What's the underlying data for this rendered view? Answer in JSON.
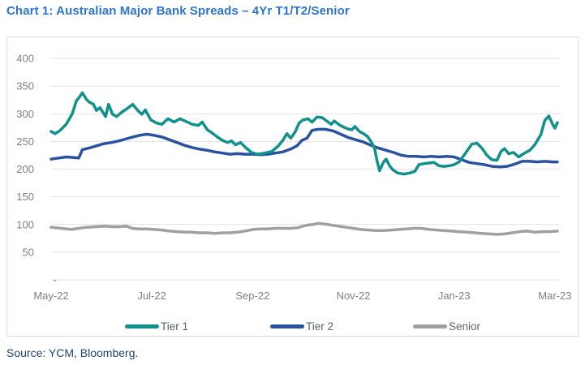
{
  "source_note": "Source: YCM, Bloomberg.",
  "colors": {
    "title_text": "#2E75C9",
    "source_text": "#24456B",
    "axis_tick": "#7F7F7F",
    "gridline": "#E2E2E2",
    "panel_border": "#D9D9D9",
    "legend_label": "#5A6470"
  },
  "chart_data": {
    "type": "line",
    "title": "Chart 1: Australian Major Bank Spreads – 4Yr T1/T2/Senior",
    "xlabel": "",
    "ylabel": "",
    "grid": "horizontal",
    "legend_position": "bottom",
    "x_unit": "months since May-2022",
    "xlim": [
      0,
      10.05
    ],
    "ylim": [
      0,
      400
    ],
    "x_ticks": [
      {
        "m": 0,
        "label": "May-22"
      },
      {
        "m": 2,
        "label": "Jul-22"
      },
      {
        "m": 4,
        "label": "Sep-22"
      },
      {
        "m": 6,
        "label": "Nov-22"
      },
      {
        "m": 8,
        "label": "Jan-23"
      },
      {
        "m": 10,
        "label": "Mar-23"
      }
    ],
    "y_ticks": [
      {
        "v": 400,
        "label": "400"
      },
      {
        "v": 350,
        "label": "350"
      },
      {
        "v": 300,
        "label": "300"
      },
      {
        "v": 250,
        "label": "250"
      },
      {
        "v": 200,
        "label": "200"
      },
      {
        "v": 150,
        "label": "150"
      },
      {
        "v": 100,
        "label": "100"
      },
      {
        "v": 50,
        "label": "50"
      },
      {
        "v": 0,
        "label": "-"
      }
    ],
    "series": [
      {
        "name": "Tier 1",
        "color": "#11918C",
        "points": [
          [
            0,
            268
          ],
          [
            0.08,
            264
          ],
          [
            0.18,
            270
          ],
          [
            0.3,
            281
          ],
          [
            0.42,
            300
          ],
          [
            0.5,
            323
          ],
          [
            0.56,
            330
          ],
          [
            0.62,
            338
          ],
          [
            0.7,
            326
          ],
          [
            0.76,
            321
          ],
          [
            0.84,
            317
          ],
          [
            0.9,
            306
          ],
          [
            0.97,
            311
          ],
          [
            1.08,
            295
          ],
          [
            1.14,
            317
          ],
          [
            1.22,
            299
          ],
          [
            1.3,
            295
          ],
          [
            1.42,
            304
          ],
          [
            1.52,
            310
          ],
          [
            1.62,
            317
          ],
          [
            1.72,
            306
          ],
          [
            1.8,
            299
          ],
          [
            1.87,
            307
          ],
          [
            1.98,
            289
          ],
          [
            2.1,
            283
          ],
          [
            2.2,
            281
          ],
          [
            2.32,
            291
          ],
          [
            2.44,
            285
          ],
          [
            2.56,
            291
          ],
          [
            2.68,
            286
          ],
          [
            2.8,
            281
          ],
          [
            2.92,
            279
          ],
          [
            3.0,
            285
          ],
          [
            3.1,
            271
          ],
          [
            3.2,
            265
          ],
          [
            3.3,
            258
          ],
          [
            3.4,
            252
          ],
          [
            3.5,
            248
          ],
          [
            3.58,
            251
          ],
          [
            3.66,
            244
          ],
          [
            3.76,
            248
          ],
          [
            3.86,
            239
          ],
          [
            3.98,
            230
          ],
          [
            4.1,
            227
          ],
          [
            4.24,
            229
          ],
          [
            4.38,
            232
          ],
          [
            4.5,
            241
          ],
          [
            4.6,
            252
          ],
          [
            4.68,
            264
          ],
          [
            4.76,
            256
          ],
          [
            4.85,
            268
          ],
          [
            4.92,
            283
          ],
          [
            5.0,
            289
          ],
          [
            5.1,
            291
          ],
          [
            5.18,
            285
          ],
          [
            5.28,
            294
          ],
          [
            5.38,
            293
          ],
          [
            5.5,
            285
          ],
          [
            5.56,
            281
          ],
          [
            5.62,
            287
          ],
          [
            5.72,
            280
          ],
          [
            5.78,
            277
          ],
          [
            5.88,
            273
          ],
          [
            5.97,
            271
          ],
          [
            6.03,
            277
          ],
          [
            6.12,
            268
          ],
          [
            6.2,
            264
          ],
          [
            6.28,
            259
          ],
          [
            6.35,
            250
          ],
          [
            6.42,
            238
          ],
          [
            6.47,
            215
          ],
          [
            6.52,
            197
          ],
          [
            6.6,
            213
          ],
          [
            6.65,
            218
          ],
          [
            6.72,
            206
          ],
          [
            6.78,
            199
          ],
          [
            6.88,
            193
          ],
          [
            7.0,
            191
          ],
          [
            7.12,
            193
          ],
          [
            7.22,
            196
          ],
          [
            7.3,
            208
          ],
          [
            7.4,
            210
          ],
          [
            7.5,
            211
          ],
          [
            7.6,
            212
          ],
          [
            7.7,
            206
          ],
          [
            7.8,
            205
          ],
          [
            7.9,
            206
          ],
          [
            8.0,
            208
          ],
          [
            8.1,
            213
          ],
          [
            8.22,
            228
          ],
          [
            8.35,
            245
          ],
          [
            8.45,
            247
          ],
          [
            8.55,
            238
          ],
          [
            8.65,
            225
          ],
          [
            8.75,
            217
          ],
          [
            8.85,
            216
          ],
          [
            8.93,
            232
          ],
          [
            9.0,
            237
          ],
          [
            9.08,
            228
          ],
          [
            9.18,
            230
          ],
          [
            9.28,
            222
          ],
          [
            9.4,
            229
          ],
          [
            9.5,
            234
          ],
          [
            9.6,
            244
          ],
          [
            9.72,
            262
          ],
          [
            9.8,
            288
          ],
          [
            9.88,
            296
          ],
          [
            9.96,
            280
          ],
          [
            10.0,
            274
          ],
          [
            10.05,
            284
          ]
        ]
      },
      {
        "name": "Tier 2",
        "color": "#2A52A0",
        "points": [
          [
            0,
            218
          ],
          [
            0.15,
            220
          ],
          [
            0.3,
            222
          ],
          [
            0.45,
            221
          ],
          [
            0.55,
            220
          ],
          [
            0.62,
            235
          ],
          [
            0.75,
            238
          ],
          [
            0.9,
            242
          ],
          [
            1.05,
            246
          ],
          [
            1.2,
            248
          ],
          [
            1.35,
            251
          ],
          [
            1.5,
            255
          ],
          [
            1.62,
            258
          ],
          [
            1.75,
            261
          ],
          [
            1.9,
            263
          ],
          [
            2.05,
            261
          ],
          [
            2.2,
            258
          ],
          [
            2.35,
            253
          ],
          [
            2.5,
            248
          ],
          [
            2.65,
            243
          ],
          [
            2.8,
            239
          ],
          [
            2.95,
            236
          ],
          [
            3.1,
            234
          ],
          [
            3.25,
            231
          ],
          [
            3.4,
            229
          ],
          [
            3.55,
            227
          ],
          [
            3.7,
            228
          ],
          [
            3.85,
            227
          ],
          [
            4.0,
            227
          ],
          [
            4.15,
            226
          ],
          [
            4.3,
            227
          ],
          [
            4.45,
            229
          ],
          [
            4.6,
            231
          ],
          [
            4.75,
            236
          ],
          [
            4.88,
            242
          ],
          [
            4.98,
            252
          ],
          [
            5.08,
            256
          ],
          [
            5.18,
            270
          ],
          [
            5.3,
            272
          ],
          [
            5.45,
            272
          ],
          [
            5.6,
            269
          ],
          [
            5.75,
            263
          ],
          [
            5.9,
            257
          ],
          [
            6.05,
            253
          ],
          [
            6.2,
            249
          ],
          [
            6.35,
            243
          ],
          [
            6.5,
            238
          ],
          [
            6.65,
            234
          ],
          [
            6.8,
            230
          ],
          [
            6.95,
            225
          ],
          [
            7.1,
            223
          ],
          [
            7.25,
            223
          ],
          [
            7.4,
            222
          ],
          [
            7.55,
            223
          ],
          [
            7.7,
            222
          ],
          [
            7.85,
            223
          ],
          [
            8.0,
            222
          ],
          [
            8.15,
            217
          ],
          [
            8.3,
            212
          ],
          [
            8.45,
            210
          ],
          [
            8.6,
            208
          ],
          [
            8.75,
            205
          ],
          [
            8.9,
            204
          ],
          [
            9.05,
            205
          ],
          [
            9.2,
            209
          ],
          [
            9.35,
            214
          ],
          [
            9.5,
            214
          ],
          [
            9.65,
            213
          ],
          [
            9.8,
            214
          ],
          [
            9.95,
            213
          ],
          [
            10.05,
            213
          ]
        ]
      },
      {
        "name": "Senior",
        "color": "#9EA0A2",
        "points": [
          [
            0,
            95
          ],
          [
            0.2,
            93
          ],
          [
            0.4,
            91
          ],
          [
            0.55,
            93
          ],
          [
            0.7,
            95
          ],
          [
            0.9,
            96
          ],
          [
            1.05,
            97
          ],
          [
            1.2,
            96
          ],
          [
            1.35,
            96
          ],
          [
            1.5,
            97
          ],
          [
            1.6,
            93
          ],
          [
            1.75,
            92
          ],
          [
            1.9,
            92
          ],
          [
            2.05,
            91
          ],
          [
            2.2,
            90
          ],
          [
            2.35,
            88
          ],
          [
            2.5,
            87
          ],
          [
            2.65,
            86
          ],
          [
            2.8,
            86
          ],
          [
            2.95,
            85
          ],
          [
            3.1,
            85
          ],
          [
            3.25,
            84
          ],
          [
            3.4,
            85
          ],
          [
            3.55,
            85
          ],
          [
            3.7,
            86
          ],
          [
            3.85,
            88
          ],
          [
            4.0,
            91
          ],
          [
            4.15,
            92
          ],
          [
            4.3,
            92
          ],
          [
            4.45,
            93
          ],
          [
            4.6,
            93
          ],
          [
            4.75,
            93
          ],
          [
            4.9,
            94
          ],
          [
            5.0,
            97
          ],
          [
            5.1,
            99
          ],
          [
            5.2,
            100
          ],
          [
            5.3,
            102
          ],
          [
            5.42,
            101
          ],
          [
            5.55,
            99
          ],
          [
            5.7,
            97
          ],
          [
            5.85,
            95
          ],
          [
            6.0,
            93
          ],
          [
            6.15,
            91
          ],
          [
            6.3,
            90
          ],
          [
            6.45,
            89
          ],
          [
            6.6,
            89
          ],
          [
            6.75,
            90
          ],
          [
            6.9,
            91
          ],
          [
            7.05,
            92
          ],
          [
            7.2,
            93
          ],
          [
            7.35,
            93
          ],
          [
            7.5,
            91
          ],
          [
            7.65,
            90
          ],
          [
            7.8,
            89
          ],
          [
            7.95,
            88
          ],
          [
            8.1,
            87
          ],
          [
            8.25,
            86
          ],
          [
            8.4,
            85
          ],
          [
            8.55,
            84
          ],
          [
            8.7,
            83
          ],
          [
            8.85,
            82
          ],
          [
            9.0,
            83
          ],
          [
            9.15,
            85
          ],
          [
            9.3,
            87
          ],
          [
            9.45,
            88
          ],
          [
            9.6,
            86
          ],
          [
            9.75,
            87
          ],
          [
            9.9,
            87
          ],
          [
            10.05,
            88
          ]
        ]
      }
    ]
  }
}
